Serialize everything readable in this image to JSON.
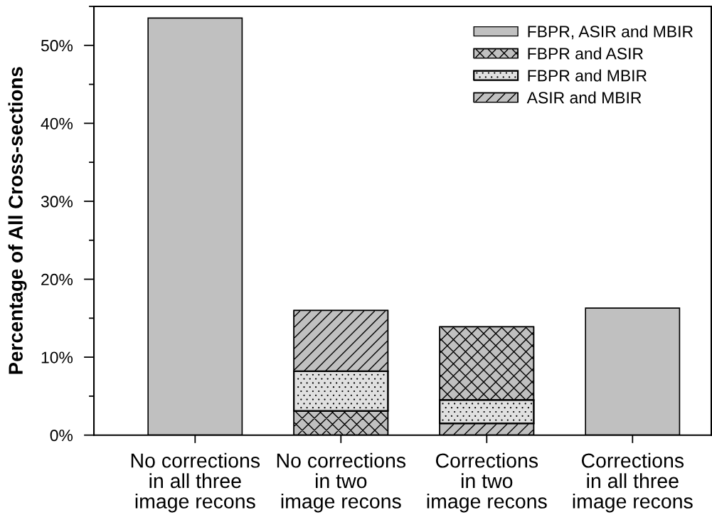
{
  "chart_data": {
    "type": "bar",
    "ylabel": "Percentage of All Cross-sections",
    "categories": [
      "No corrections\nin all three\nimage recons",
      "No corrections\nin two\nimage recons",
      "Corrections\nin two\nimage recons",
      "Corrections\nin all three\nimage recons"
    ],
    "series": [
      {
        "name": "FBPR, ASIR and MBIR",
        "color": "#c0c0c0",
        "values": [
          53.5,
          null,
          null,
          16.3
        ],
        "base": [
          0,
          null,
          null,
          0
        ]
      },
      {
        "name": "FBPR and ASIR",
        "color": "#c0c0c0",
        "values": [
          null,
          3.1,
          9.4,
          null
        ],
        "base": [
          null,
          0,
          4.5,
          null
        ]
      },
      {
        "name": "FBPR and MBIR",
        "color": "#e0e0e0",
        "values": [
          null,
          5.1,
          3.0,
          null
        ],
        "base": [
          null,
          3.1,
          1.5,
          null
        ]
      },
      {
        "name": "ASIR and MBIR",
        "color": "#c0c0c0",
        "values": [
          null,
          7.8,
          1.5,
          null
        ],
        "base": [
          null,
          8.2,
          0,
          null
        ]
      }
    ],
    "ylim": [
      0,
      55
    ],
    "yticks": [
      {
        "value": 0,
        "label": "0%"
      },
      {
        "value": 5,
        "label": null
      },
      {
        "value": 10,
        "label": "10%"
      },
      {
        "value": 15,
        "label": null
      },
      {
        "value": 20,
        "label": "20%"
      },
      {
        "value": 25,
        "label": null
      },
      {
        "value": 30,
        "label": "30%"
      },
      {
        "value": 35,
        "label": null
      },
      {
        "value": 40,
        "label": "40%"
      },
      {
        "value": 45,
        "label": null
      },
      {
        "value": 50,
        "label": "50%"
      },
      {
        "value": 55,
        "label": null
      }
    ],
    "legend": "top right"
  }
}
